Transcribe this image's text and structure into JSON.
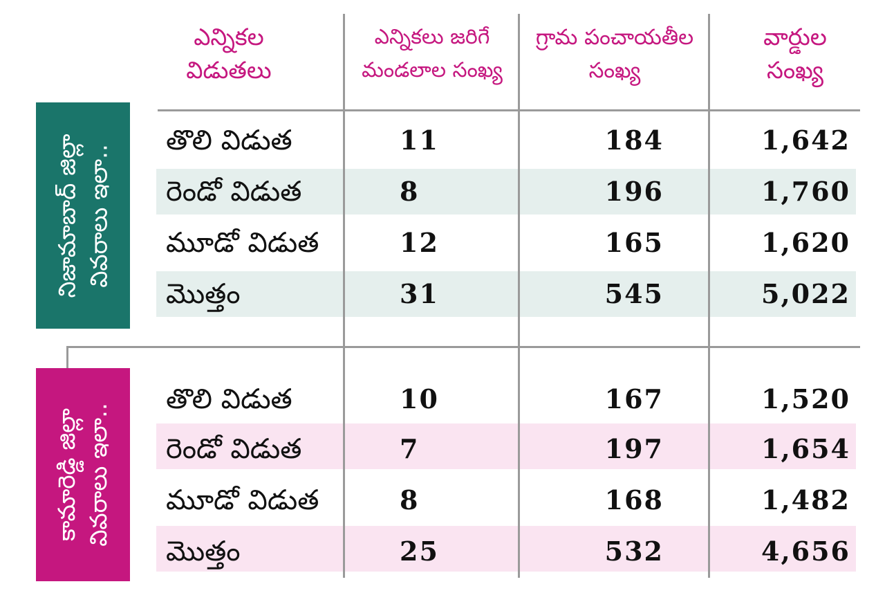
{
  "headers": {
    "col0": [
      "ఎన్నికల",
      "విడుతలు"
    ],
    "col1": [
      "ఎన్నికలు జరిగే",
      "మండలాల సంఖ్య"
    ],
    "col2": [
      "గ్రామ పంచాయతీల",
      "సంఖ్య"
    ],
    "col3": [
      "వార్డుల",
      "సంఖ్య"
    ]
  },
  "districts": [
    {
      "label_lines": [
        "నిజామాబాద్ జిల్లా",
        "వివరాలు ఇలా.."
      ],
      "color": "#1a756a",
      "band_color": "#e5efed",
      "rows": [
        {
          "phase": "తొలి విడుత",
          "mandals": "11",
          "panchayats": "184",
          "wards": "1,642"
        },
        {
          "phase": "రెండో విడుత",
          "mandals": "8",
          "panchayats": "196",
          "wards": "1,760"
        },
        {
          "phase": "మూడో విడుత",
          "mandals": "12",
          "panchayats": "165",
          "wards": "1,620"
        },
        {
          "phase": "మొత్తం",
          "mandals": "31",
          "panchayats": "545",
          "wards": "5,022"
        }
      ]
    },
    {
      "label_lines": [
        "కామారెడ్డి జిల్లా",
        "వివరాలు ఇలా.."
      ],
      "color": "#c5177f",
      "band_color": "#fae4f1",
      "rows": [
        {
          "phase": "తొలి విడుత",
          "mandals": "10",
          "panchayats": "167",
          "wards": "1,520"
        },
        {
          "phase": "రెండో విడుత",
          "mandals": "7",
          "panchayats": "197",
          "wards": "1,654"
        },
        {
          "phase": "మూడో విడుత",
          "mandals": "8",
          "panchayats": "168",
          "wards": "1,482"
        },
        {
          "phase": "మొత్తం",
          "mandals": "25",
          "panchayats": "532",
          "wards": "4,656"
        }
      ]
    }
  ]
}
